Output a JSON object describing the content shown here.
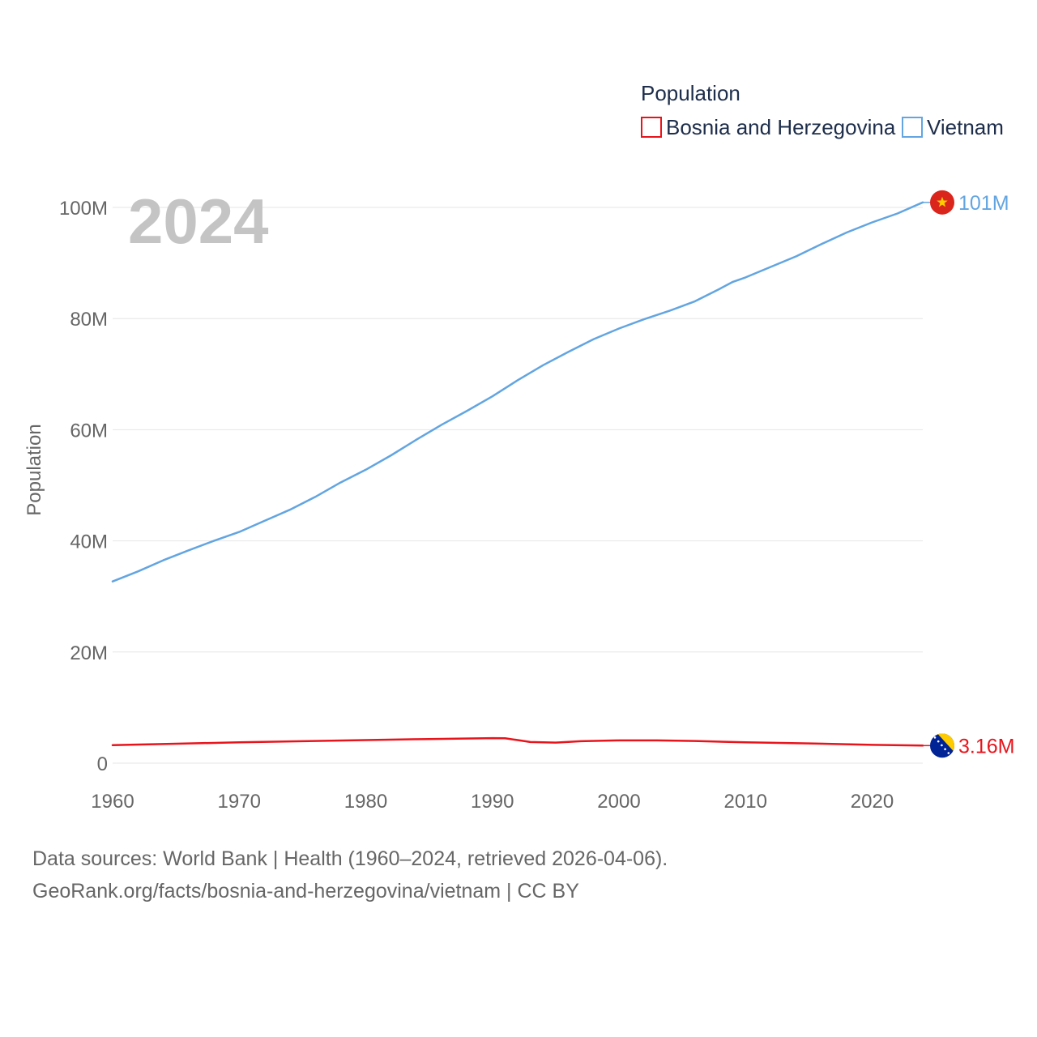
{
  "chart_data": {
    "type": "line",
    "title": "Population",
    "ylabel": "Population",
    "xlabel": "",
    "year_display": "2024",
    "xlim": [
      1960,
      2024
    ],
    "ylim": [
      0,
      100000000
    ],
    "x_ticks": [
      {
        "value": 1960,
        "label": "1960"
      },
      {
        "value": 1970,
        "label": "1970"
      },
      {
        "value": 1980,
        "label": "1980"
      },
      {
        "value": 1990,
        "label": "1990"
      },
      {
        "value": 2000,
        "label": "2000"
      },
      {
        "value": 2010,
        "label": "2010"
      },
      {
        "value": 2020,
        "label": "2020"
      }
    ],
    "y_ticks": [
      {
        "value": 0,
        "label": "0"
      },
      {
        "value": 20000000,
        "label": "20M"
      },
      {
        "value": 40000000,
        "label": "40M"
      },
      {
        "value": 60000000,
        "label": "60M"
      },
      {
        "value": 80000000,
        "label": "80M"
      },
      {
        "value": 100000000,
        "label": "100M"
      }
    ],
    "grid": true,
    "legend_position": "top-right",
    "series": [
      {
        "name": "Bosnia and Herzegovina",
        "color": "#e8141c",
        "flag": "bosnia-flag",
        "end_label": "3.16M",
        "points": [
          [
            1960,
            3.23
          ],
          [
            1965,
            3.5
          ],
          [
            1970,
            3.75
          ],
          [
            1975,
            3.95
          ],
          [
            1980,
            4.15
          ],
          [
            1985,
            4.35
          ],
          [
            1990,
            4.5
          ],
          [
            1991,
            4.47
          ],
          [
            1992,
            4.15
          ],
          [
            1993,
            3.8
          ],
          [
            1995,
            3.7
          ],
          [
            1997,
            3.95
          ],
          [
            2000,
            4.1
          ],
          [
            2003,
            4.1
          ],
          [
            2006,
            4.0
          ],
          [
            2010,
            3.75
          ],
          [
            2015,
            3.55
          ],
          [
            2020,
            3.3
          ],
          [
            2024,
            3.16
          ]
        ]
      },
      {
        "name": "Vietnam",
        "color": "#62a5e1",
        "flag": "vietnam-flag",
        "end_label": "101M",
        "points": [
          [
            1960,
            32.7
          ],
          [
            1962,
            34.5
          ],
          [
            1964,
            36.5
          ],
          [
            1966,
            38.3
          ],
          [
            1968,
            40.0
          ],
          [
            1970,
            41.6
          ],
          [
            1972,
            43.6
          ],
          [
            1974,
            45.6
          ],
          [
            1976,
            47.9
          ],
          [
            1978,
            50.5
          ],
          [
            1980,
            52.8
          ],
          [
            1982,
            55.4
          ],
          [
            1984,
            58.2
          ],
          [
            1986,
            60.9
          ],
          [
            1988,
            63.4
          ],
          [
            1990,
            66.0
          ],
          [
            1992,
            68.9
          ],
          [
            1994,
            71.6
          ],
          [
            1996,
            74.0
          ],
          [
            1998,
            76.3
          ],
          [
            2000,
            78.2
          ],
          [
            2002,
            79.9
          ],
          [
            2004,
            81.4
          ],
          [
            2006,
            83.1
          ],
          [
            2008,
            85.4
          ],
          [
            2009,
            86.6
          ],
          [
            2010,
            87.4
          ],
          [
            2012,
            89.3
          ],
          [
            2014,
            91.2
          ],
          [
            2016,
            93.4
          ],
          [
            2018,
            95.5
          ],
          [
            2020,
            97.3
          ],
          [
            2022,
            98.9
          ],
          [
            2024,
            100.9
          ]
        ]
      }
    ]
  },
  "footer": {
    "source_line": "Data sources: World Bank | Health (1960–2024, retrieved 2026-04-06).",
    "url_line": "GeoRank.org/facts/bosnia-and-herzegovina/vietnam | CC BY"
  }
}
